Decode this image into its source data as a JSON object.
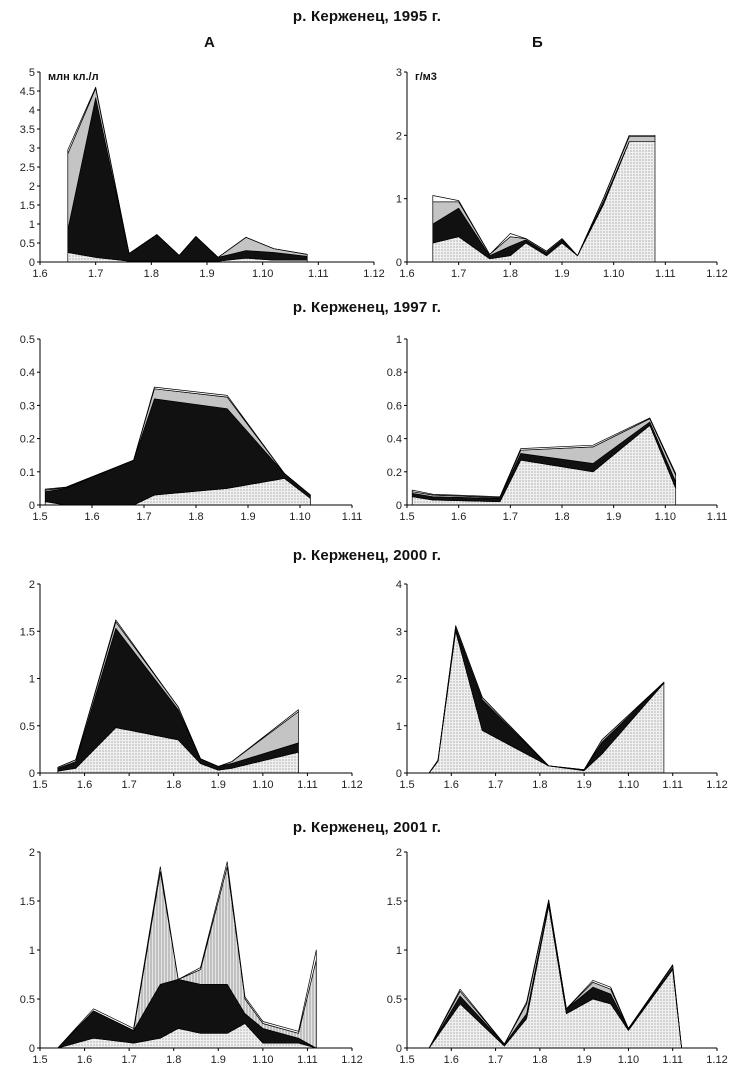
{
  "titles": {
    "s1995": "р. Керженец, 1995 г.",
    "s1997": "р. Керженец, 1997 г.",
    "s2000": "р. Керженец, 2000 г.",
    "s2001": "р. Керженец, 2001 г."
  },
  "col_labels": {
    "a": "А",
    "b": "Б"
  },
  "colors": {
    "black": "#111111",
    "grey": "#c4c4c4",
    "dotted": "#eaeaea",
    "line": "#000000"
  },
  "chart_data": [
    {
      "id": "a1995",
      "type": "area",
      "title": "",
      "ylabel": "млн кл./л",
      "xlabel": "",
      "ylim": [
        0,
        5
      ],
      "yticks": [
        "0",
        "0.5",
        "1",
        "1.5",
        "2",
        "2.5",
        "3",
        "3.5",
        "4",
        "4.5",
        "5"
      ],
      "xticks": [
        "1.6",
        "1.7",
        "1.8",
        "1.9",
        "1.10",
        "1.11",
        "1.12"
      ],
      "x": [
        1.65,
        1.7,
        1.76,
        1.81,
        1.85,
        1.88,
        1.92,
        1.97,
        2.02,
        2.08
      ],
      "series": [
        {
          "fill": "dotted",
          "values": [
            0.25,
            0.12,
            0.02,
            0.02,
            0.02,
            0.02,
            0.02,
            0.1,
            0.05,
            0.05
          ]
        },
        {
          "fill": "black",
          "values": [
            0.6,
            4.2,
            0.2,
            0.7,
            0.15,
            0.65,
            0.1,
            0.2,
            0.2,
            0.1
          ]
        },
        {
          "fill": "grey",
          "values": [
            2.0,
            0.25,
            0.0,
            0.0,
            0.0,
            0.0,
            0.0,
            0.35,
            0.1,
            0.05
          ]
        },
        {
          "fill": "white",
          "values": [
            0.1,
            0.03,
            0.0,
            0.0,
            0.0,
            0.0,
            0.0,
            0.0,
            0.0,
            0.0
          ]
        }
      ]
    },
    {
      "id": "b1995",
      "type": "area",
      "title": "",
      "ylabel": "г/м3",
      "xlabel": "",
      "ylim": [
        0,
        3
      ],
      "yticks": [
        "0",
        "1",
        "2",
        "3"
      ],
      "xticks": [
        "1.6",
        "1.7",
        "1.8",
        "1.9",
        "1.10",
        "1.11",
        "1.12"
      ],
      "x": [
        1.65,
        1.7,
        1.76,
        1.8,
        1.83,
        1.87,
        1.9,
        1.93,
        1.98,
        2.03,
        2.08
      ],
      "series": [
        {
          "fill": "dotted",
          "values": [
            0.3,
            0.4,
            0.05,
            0.1,
            0.3,
            0.1,
            0.3,
            0.1,
            0.9,
            1.9,
            1.9
          ]
        },
        {
          "fill": "black",
          "values": [
            0.3,
            0.45,
            0.05,
            0.15,
            0.05,
            0.05,
            0.05,
            0.0,
            0.05,
            0.0,
            0.0
          ]
        },
        {
          "fill": "grey",
          "values": [
            0.35,
            0.1,
            0.02,
            0.15,
            0.02,
            0.02,
            0.02,
            0.0,
            0.05,
            0.08,
            0.08
          ]
        },
        {
          "fill": "white",
          "values": [
            0.1,
            0.02,
            0.0,
            0.05,
            0.0,
            0.0,
            0.0,
            0.0,
            0.0,
            0.02,
            0.02
          ]
        }
      ]
    },
    {
      "id": "a1997",
      "type": "area",
      "title": "",
      "ylabel": "",
      "xlabel": "",
      "ylim": [
        0,
        0.5
      ],
      "yticks": [
        "0",
        "0.1",
        "0.2",
        "0.3",
        "0.4",
        "0.5"
      ],
      "xticks": [
        "1.5",
        "1.6",
        "1.7",
        "1.8",
        "1.9",
        "1.10",
        "1.11"
      ],
      "x": [
        1.51,
        1.55,
        1.68,
        1.72,
        1.86,
        1.97,
        2.02
      ],
      "series": [
        {
          "fill": "dotted",
          "values": [
            0.01,
            0.0,
            0.0,
            0.03,
            0.05,
            0.08,
            0.02
          ]
        },
        {
          "fill": "black",
          "values": [
            0.03,
            0.05,
            0.135,
            0.29,
            0.24,
            0.015,
            0.01
          ]
        },
        {
          "fill": "grey",
          "values": [
            0.005,
            0.002,
            0.0,
            0.03,
            0.035,
            0.0,
            0.0
          ]
        },
        {
          "fill": "white",
          "values": [
            0.003,
            0.002,
            0.0,
            0.005,
            0.005,
            0.0,
            0.0
          ]
        }
      ]
    },
    {
      "id": "b1997",
      "type": "area",
      "title": "",
      "ylabel": "",
      "xlabel": "",
      "ylim": [
        0,
        1
      ],
      "yticks": [
        "0",
        "0.2",
        "0.4",
        "0.6",
        "0.8",
        "1"
      ],
      "xticks": [
        "1.5",
        "1.6",
        "1.7",
        "1.8",
        "1.9",
        "1.10",
        "1.11"
      ],
      "x": [
        1.51,
        1.55,
        1.68,
        1.72,
        1.86,
        1.97,
        2.02
      ],
      "series": [
        {
          "fill": "dotted",
          "values": [
            0.05,
            0.03,
            0.02,
            0.27,
            0.2,
            0.48,
            0.1
          ]
        },
        {
          "fill": "black",
          "values": [
            0.02,
            0.02,
            0.02,
            0.04,
            0.05,
            0.02,
            0.04
          ]
        },
        {
          "fill": "grey",
          "values": [
            0.01,
            0.01,
            0.005,
            0.02,
            0.1,
            0.02,
            0.04
          ]
        },
        {
          "fill": "white",
          "values": [
            0.01,
            0.005,
            0.005,
            0.01,
            0.01,
            0.005,
            0.01
          ]
        }
      ]
    },
    {
      "id": "a2000",
      "type": "area",
      "title": "",
      "ylabel": "",
      "xlabel": "",
      "ylim": [
        0,
        2
      ],
      "yticks": [
        "0",
        "0.5",
        "1",
        "1.5",
        "2"
      ],
      "xticks": [
        "1.5",
        "1.6",
        "1.7",
        "1.8",
        "1.9",
        "1.10",
        "1.11",
        "1.12"
      ],
      "x": [
        1.54,
        1.58,
        1.67,
        1.81,
        1.86,
        1.9,
        1.93,
        2.08
      ],
      "series": [
        {
          "fill": "dotted",
          "values": [
            0.02,
            0.05,
            0.48,
            0.35,
            0.1,
            0.03,
            0.05,
            0.22
          ]
        },
        {
          "fill": "black",
          "values": [
            0.03,
            0.07,
            1.05,
            0.32,
            0.05,
            0.04,
            0.05,
            0.1
          ]
        },
        {
          "fill": "grey",
          "values": [
            0.01,
            0.02,
            0.07,
            0.03,
            0.0,
            0.0,
            0.02,
            0.33
          ]
        },
        {
          "fill": "white",
          "values": [
            0.0,
            0.0,
            0.02,
            0.0,
            0.0,
            0.0,
            0.0,
            0.02
          ]
        }
      ]
    },
    {
      "id": "b2000",
      "type": "area",
      "title": "",
      "ylabel": "",
      "xlabel": "",
      "ylim": [
        0,
        4
      ],
      "yticks": [
        "0",
        "1",
        "2",
        "3",
        "4"
      ],
      "xticks": [
        "1.5",
        "1.6",
        "1.7",
        "1.8",
        "1.9",
        "1.10",
        "1.11",
        "1.12"
      ],
      "x": [
        1.55,
        1.57,
        1.61,
        1.67,
        1.82,
        1.9,
        1.94,
        2.08
      ],
      "series": [
        {
          "fill": "dotted",
          "values": [
            0.0,
            0.25,
            3.0,
            0.9,
            0.15,
            0.05,
            0.4,
            1.9
          ]
        },
        {
          "fill": "black",
          "values": [
            0.0,
            0.02,
            0.05,
            0.65,
            0.0,
            0.02,
            0.25,
            0.02
          ]
        },
        {
          "fill": "grey",
          "values": [
            0.0,
            0.0,
            0.05,
            0.05,
            0.0,
            0.0,
            0.05,
            0.0
          ]
        },
        {
          "fill": "white",
          "values": [
            0.0,
            0.0,
            0.02,
            0.0,
            0.0,
            0.0,
            0.0,
            0.0
          ]
        }
      ]
    },
    {
      "id": "a2001",
      "type": "area",
      "title": "",
      "ylabel": "",
      "xlabel": "",
      "ylim": [
        0,
        2
      ],
      "yticks": [
        "0",
        "0.5",
        "1",
        "1.5",
        "2"
      ],
      "xticks": [
        "1.5",
        "1.6",
        "1.7",
        "1.8",
        "1.9",
        "1.10",
        "1.11",
        "1.12"
      ],
      "x": [
        1.54,
        1.62,
        1.71,
        1.77,
        1.81,
        1.86,
        1.92,
        1.96,
        2.0,
        2.08,
        2.12
      ],
      "series": [
        {
          "fill": "dotted",
          "values": [
            0.0,
            0.1,
            0.05,
            0.1,
            0.2,
            0.15,
            0.15,
            0.25,
            0.05,
            0.05,
            0.0
          ]
        },
        {
          "fill": "black",
          "values": [
            0.0,
            0.28,
            0.13,
            0.55,
            0.5,
            0.5,
            0.5,
            0.1,
            0.15,
            0.05,
            0.0
          ]
        },
        {
          "fill": "grey",
          "values": [
            0.0,
            0.0,
            0.0,
            1.15,
            0.0,
            0.15,
            1.2,
            0.15,
            0.05,
            0.05,
            0.9
          ]
        },
        {
          "fill": "white",
          "values": [
            0.0,
            0.02,
            0.02,
            0.05,
            0.0,
            0.02,
            0.05,
            0.02,
            0.02,
            0.02,
            0.1
          ]
        }
      ]
    },
    {
      "id": "b2001",
      "type": "area",
      "title": "",
      "ylabel": "",
      "xlabel": "",
      "ylim": [
        0,
        2
      ],
      "yticks": [
        "0",
        "0.5",
        "1",
        "1.5",
        "2"
      ],
      "xticks": [
        "1.5",
        "1.6",
        "1.7",
        "1.8",
        "1.9",
        "1.10",
        "1.11",
        "1.12"
      ],
      "x": [
        1.55,
        1.62,
        1.72,
        1.77,
        1.82,
        1.86,
        1.92,
        1.96,
        2.0,
        2.1,
        2.12
      ],
      "series": [
        {
          "fill": "dotted",
          "values": [
            0.0,
            0.45,
            0.02,
            0.3,
            1.45,
            0.35,
            0.5,
            0.45,
            0.18,
            0.8,
            0.0
          ]
        },
        {
          "fill": "black",
          "values": [
            0.0,
            0.08,
            0.02,
            0.05,
            0.03,
            0.05,
            0.12,
            0.1,
            0.02,
            0.02,
            0.0
          ]
        },
        {
          "fill": "grey",
          "values": [
            0.0,
            0.05,
            0.0,
            0.1,
            0.03,
            0.0,
            0.05,
            0.05,
            0.0,
            0.02,
            0.0
          ]
        },
        {
          "fill": "white",
          "values": [
            0.0,
            0.02,
            0.0,
            0.02,
            0.0,
            0.0,
            0.02,
            0.02,
            0.0,
            0.01,
            0.0
          ]
        }
      ]
    }
  ]
}
